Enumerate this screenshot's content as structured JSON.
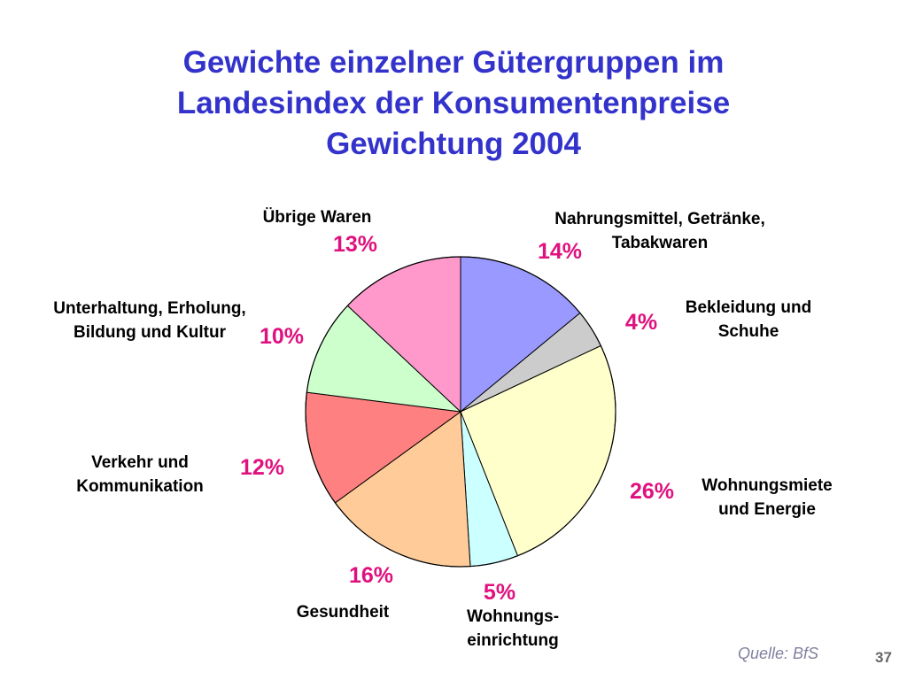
{
  "slide": {
    "title_lines": [
      "Gewichte einzelner Gütergruppen im",
      "Landesindex der Konsumentenpreise",
      "Gewichtung 2004"
    ],
    "source": "Quelle: BfS",
    "page_number": "37"
  },
  "chart_data": {
    "type": "pie",
    "start_angle": "12 o'clock",
    "direction": "clockwise",
    "percent_color": "#e0117f",
    "slices": [
      {
        "label_lines": [
          "Nahrungsmittel, Getränke,",
          "Tabakwaren"
        ],
        "value": 14,
        "percent_label": "14%",
        "color": "#9999ff"
      },
      {
        "label_lines": [
          "Bekleidung und",
          "Schuhe"
        ],
        "value": 4,
        "percent_label": "4%",
        "color": "#cccccc"
      },
      {
        "label_lines": [
          "Wohnungsmiete",
          "und Energie"
        ],
        "value": 26,
        "percent_label": "26%",
        "color": "#ffffcc"
      },
      {
        "label_lines": [
          "Wohnungs-",
          "einrichtung"
        ],
        "value": 5,
        "percent_label": "5%",
        "color": "#ccffff"
      },
      {
        "label_lines": [
          "Gesundheit"
        ],
        "value": 16,
        "percent_label": "16%",
        "color": "#ffcc99"
      },
      {
        "label_lines": [
          "Verkehr und",
          "Kommunikation"
        ],
        "value": 12,
        "percent_label": "12%",
        "color": "#ff8080"
      },
      {
        "label_lines": [
          "Unterhaltung, Erholung,",
          "Bildung und Kultur"
        ],
        "value": 10,
        "percent_label": "10%",
        "color": "#ccffcc"
      },
      {
        "label_lines": [
          "Übrige Waren"
        ],
        "value": 13,
        "percent_label": "13%",
        "color": "#ff99cc"
      }
    ]
  }
}
